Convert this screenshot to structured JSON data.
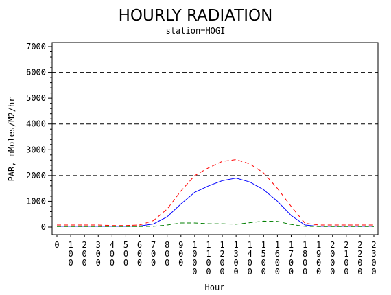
{
  "chart_data": {
    "type": "line",
    "title": "HOURLY RADIATION",
    "subtitle": "station=HOGI",
    "xlabel": "Hour",
    "ylabel": "PAR, mMoles/M2/hr",
    "x": [
      "0",
      "100",
      "200",
      "300",
      "400",
      "500",
      "600",
      "700",
      "800",
      "900",
      "1000",
      "1100",
      "1200",
      "1300",
      "1400",
      "1500",
      "1600",
      "1700",
      "1800",
      "1900",
      "2000",
      "2100",
      "2200",
      "2300"
    ],
    "ylim": [
      0,
      7000
    ],
    "yticks": [
      "0",
      "1000",
      "2000",
      "3000",
      "4000",
      "5000",
      "6000",
      "7000"
    ],
    "reference_lines": [
      2000,
      4000,
      6000
    ],
    "grid": false,
    "series": [
      {
        "color": "#ff0000",
        "dash": "dashed",
        "values": [
          80,
          80,
          80,
          80,
          60,
          60,
          80,
          250,
          700,
          1400,
          2000,
          2300,
          2550,
          2620,
          2450,
          2100,
          1500,
          800,
          150,
          80,
          80,
          80,
          80,
          80
        ]
      },
      {
        "color": "#0000ff",
        "dash": "solid",
        "values": [
          30,
          30,
          30,
          30,
          30,
          30,
          40,
          120,
          400,
          900,
          1350,
          1600,
          1800,
          1900,
          1750,
          1450,
          1000,
          450,
          80,
          30,
          30,
          30,
          30,
          30
        ]
      },
      {
        "color": "#007f00",
        "dash": "dashed",
        "values": [
          20,
          20,
          20,
          20,
          20,
          20,
          20,
          30,
          80,
          160,
          160,
          130,
          130,
          110,
          170,
          230,
          220,
          100,
          30,
          20,
          20,
          20,
          20,
          20
        ]
      }
    ]
  }
}
